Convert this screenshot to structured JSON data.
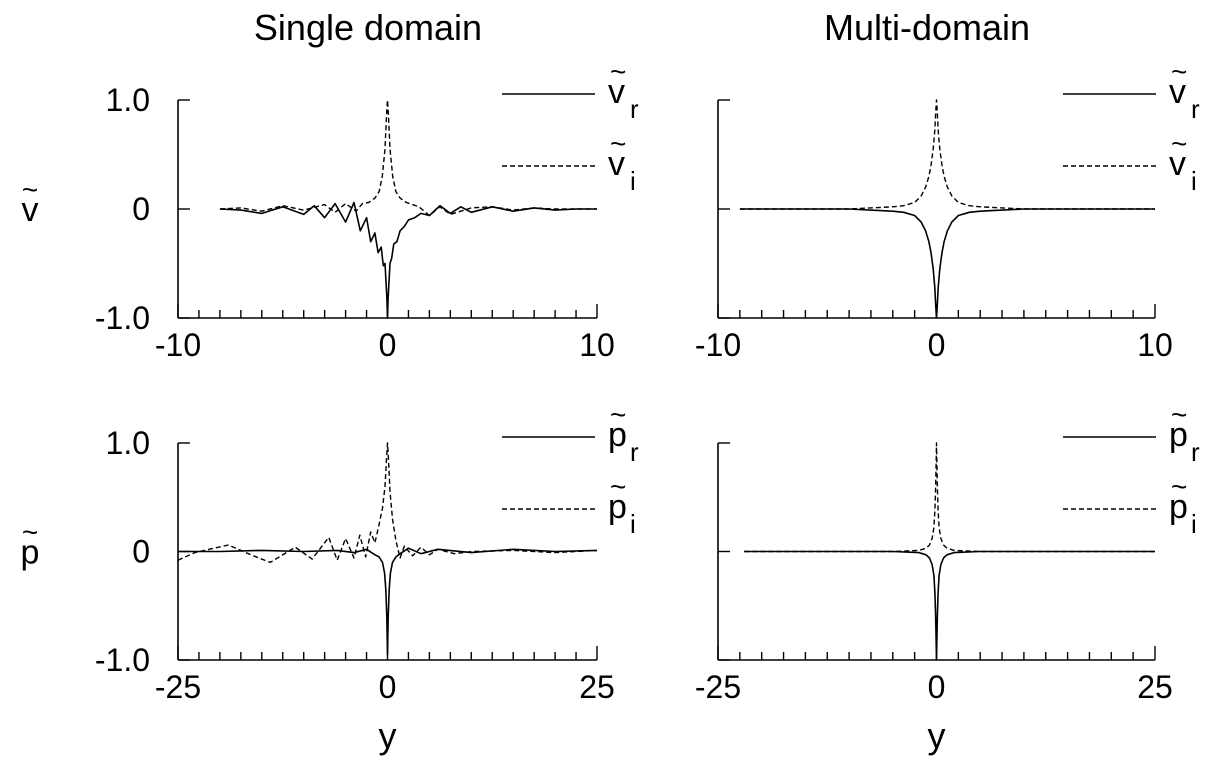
{
  "figure": {
    "column_titles": [
      "Single domain",
      "Multi-domain"
    ]
  },
  "chart_data": [
    {
      "id": "v-single",
      "type": "line",
      "title": "Single domain",
      "xlabel": "",
      "ylabel": "v",
      "xlim": [
        -10,
        10
      ],
      "ylim": [
        -1.0,
        1.0
      ],
      "x_major_ticks": [
        -10,
        0,
        10
      ],
      "x_minor_step": 1,
      "y_ticks": [
        -1.0,
        0,
        1.0
      ],
      "y_tick_labels": [
        "-1.0",
        "0",
        "1.0"
      ],
      "legend": "right",
      "series": [
        {
          "name": "v",
          "sub": "r",
          "style": "solid",
          "x": [
            -8,
            -7,
            -6,
            -5,
            -4,
            -3.5,
            -3,
            -2.5,
            -2,
            -1.6,
            -1.3,
            -1.0,
            -0.8,
            -0.6,
            -0.45,
            -0.3,
            -0.2,
            -0.12,
            -0.06,
            -0.03,
            0,
            0.03,
            0.06,
            0.12,
            0.2,
            0.3,
            0.45,
            0.6,
            0.8,
            1.0,
            1.3,
            1.6,
            2,
            2.5,
            3,
            3.5,
            4,
            5,
            6,
            7,
            8,
            9,
            10
          ],
          "y": [
            0,
            -0.01,
            -0.04,
            0.02,
            -0.05,
            0.03,
            -0.08,
            0.05,
            -0.12,
            0.06,
            -0.2,
            -0.08,
            -0.3,
            -0.22,
            -0.4,
            -0.35,
            -0.52,
            -0.5,
            -0.7,
            -0.82,
            -1.0,
            -0.82,
            -0.7,
            -0.5,
            -0.45,
            -0.32,
            -0.3,
            -0.2,
            -0.16,
            -0.1,
            -0.08,
            -0.04,
            -0.06,
            0.03,
            -0.04,
            0.02,
            -0.03,
            0.02,
            -0.02,
            0.01,
            -0.01,
            0,
            0
          ]
        },
        {
          "name": "v",
          "sub": "i",
          "style": "dashed",
          "x": [
            -8,
            -7,
            -6,
            -5,
            -4,
            -3,
            -2.5,
            -2,
            -1.5,
            -1.2,
            -0.9,
            -0.6,
            -0.4,
            -0.25,
            -0.12,
            -0.05,
            0,
            0.05,
            0.12,
            0.25,
            0.4,
            0.6,
            0.9,
            1.2,
            1.5,
            2,
            2.5,
            3,
            4,
            5,
            6,
            7,
            8,
            9,
            10
          ],
          "y": [
            0,
            0.01,
            -0.02,
            0.03,
            -0.01,
            0.04,
            -0.03,
            0.05,
            -0.02,
            0.05,
            0.06,
            0.1,
            0.16,
            0.3,
            0.55,
            0.85,
            1.0,
            0.85,
            0.55,
            0.3,
            0.16,
            0.1,
            0.06,
            0.04,
            0.02,
            -0.06,
            0.02,
            -0.05,
            0.01,
            0.02,
            -0.01,
            0.01,
            0,
            0,
            0
          ]
        }
      ]
    },
    {
      "id": "v-multi",
      "type": "line",
      "title": "Multi-domain",
      "xlabel": "",
      "ylabel": "",
      "xlim": [
        -10,
        10
      ],
      "ylim": [
        -1.0,
        1.0
      ],
      "x_major_ticks": [
        -10,
        0,
        10
      ],
      "x_minor_step": 1,
      "y_ticks": [
        -1.0,
        0,
        1.0
      ],
      "y_tick_labels": [
        "",
        "",
        ""
      ],
      "legend": "right",
      "series": [
        {
          "name": "v",
          "sub": "r",
          "style": "solid",
          "x": [
            -9,
            -4,
            -2,
            -1.5,
            -1.0,
            -0.7,
            -0.5,
            -0.35,
            -0.25,
            -0.15,
            -0.08,
            -0.03,
            0,
            0.03,
            0.08,
            0.15,
            0.25,
            0.35,
            0.5,
            0.7,
            1.0,
            1.5,
            2,
            4,
            10
          ],
          "y": [
            0,
            0,
            -0.02,
            -0.03,
            -0.06,
            -0.12,
            -0.2,
            -0.3,
            -0.4,
            -0.55,
            -0.72,
            -0.9,
            -1.0,
            -0.9,
            -0.72,
            -0.55,
            -0.4,
            -0.3,
            -0.2,
            -0.12,
            -0.06,
            -0.03,
            -0.02,
            0,
            0
          ]
        },
        {
          "name": "v",
          "sub": "i",
          "style": "dashed",
          "x": [
            -9,
            -4,
            -2,
            -1.5,
            -1.0,
            -0.7,
            -0.5,
            -0.35,
            -0.25,
            -0.15,
            -0.08,
            -0.03,
            0,
            0.03,
            0.08,
            0.15,
            0.25,
            0.35,
            0.5,
            0.7,
            1.0,
            1.5,
            2,
            4,
            10
          ],
          "y": [
            0,
            0,
            0.02,
            0.03,
            0.06,
            0.12,
            0.2,
            0.3,
            0.4,
            0.55,
            0.72,
            0.9,
            1.0,
            0.9,
            0.72,
            0.55,
            0.4,
            0.3,
            0.2,
            0.12,
            0.06,
            0.03,
            0.02,
            0,
            0
          ]
        }
      ]
    },
    {
      "id": "p-single",
      "type": "line",
      "title": "",
      "xlabel": "y",
      "ylabel": "p",
      "xlim": [
        -25,
        25
      ],
      "ylim": [
        -1.0,
        1.0
      ],
      "x_major_ticks": [
        -25,
        0,
        25
      ],
      "x_minor_step": 2.5,
      "y_ticks": [
        -1.0,
        0,
        1.0
      ],
      "y_tick_labels": [
        "-1.0",
        "0",
        "1.0"
      ],
      "legend": "right",
      "series": [
        {
          "name": "p",
          "sub": "r",
          "style": "solid",
          "x": [
            -25,
            -20,
            -15,
            -10,
            -6,
            -4,
            -2.5,
            -1.5,
            -1.0,
            -0.6,
            -0.35,
            -0.2,
            -0.08,
            0,
            0.08,
            0.2,
            0.35,
            0.6,
            1.0,
            1.5,
            2.5,
            4,
            6,
            10,
            15,
            20,
            25
          ],
          "y": [
            0,
            0,
            0.01,
            0,
            0.01,
            -0.01,
            0.02,
            -0.03,
            -0.05,
            -0.1,
            -0.2,
            -0.35,
            -0.6,
            -0.95,
            -0.6,
            -0.35,
            -0.2,
            -0.1,
            -0.05,
            -0.02,
            0.03,
            -0.02,
            0.02,
            -0.01,
            0.02,
            0,
            0.01
          ]
        },
        {
          "name": "p",
          "sub": "i",
          "style": "dashed",
          "x": [
            -26,
            -23,
            -19,
            -16,
            -14,
            -11,
            -9,
            -7,
            -6,
            -5,
            -4,
            -3.3,
            -2.6,
            -2,
            -1.5,
            -1.0,
            -0.6,
            -0.3,
            -0.12,
            0,
            0.12,
            0.3,
            0.6,
            1.0,
            1.5,
            2,
            3,
            4,
            5,
            6,
            8,
            10,
            15,
            20,
            25
          ],
          "y": [
            -0.08,
            -0.01,
            0.06,
            -0.04,
            -0.1,
            0.04,
            -0.07,
            0.13,
            -0.08,
            0.12,
            -0.06,
            0.15,
            -0.05,
            0.18,
            0.08,
            0.25,
            0.4,
            0.6,
            0.85,
            1.0,
            0.85,
            0.55,
            0.3,
            0.1,
            -0.06,
            0.05,
            -0.04,
            0.04,
            -0.03,
            0.02,
            -0.02,
            0,
            0.01,
            -0.01,
            0.01
          ]
        }
      ]
    },
    {
      "id": "p-multi",
      "type": "line",
      "title": "",
      "xlabel": "y",
      "ylabel": "",
      "xlim": [
        -25,
        25
      ],
      "ylim": [
        -1.0,
        1.0
      ],
      "x_major_ticks": [
        -25,
        0,
        25
      ],
      "x_minor_step": 2.5,
      "y_ticks": [
        -1.0,
        0,
        1.0
      ],
      "y_tick_labels": [
        "",
        "",
        ""
      ],
      "legend": "right",
      "series": [
        {
          "name": "p",
          "sub": "r",
          "style": "solid",
          "x": [
            -22,
            -5,
            -2,
            -1.2,
            -0.8,
            -0.5,
            -0.3,
            -0.18,
            -0.1,
            -0.04,
            0,
            0.04,
            0.1,
            0.18,
            0.3,
            0.5,
            0.8,
            1.2,
            2,
            5,
            25
          ],
          "y": [
            0,
            0,
            -0.01,
            -0.03,
            -0.06,
            -0.12,
            -0.22,
            -0.38,
            -0.58,
            -0.85,
            -1.0,
            -0.85,
            -0.58,
            -0.38,
            -0.22,
            -0.12,
            -0.06,
            -0.03,
            -0.01,
            0,
            0
          ]
        },
        {
          "name": "p",
          "sub": "i",
          "style": "dashed",
          "x": [
            -22,
            -5,
            -2,
            -1.2,
            -0.8,
            -0.5,
            -0.3,
            -0.18,
            -0.1,
            -0.04,
            0,
            0.04,
            0.1,
            0.18,
            0.3,
            0.5,
            0.8,
            1.2,
            2,
            5,
            25
          ],
          "y": [
            0,
            0,
            0.01,
            0.03,
            0.06,
            0.12,
            0.22,
            0.38,
            0.58,
            0.85,
            1.0,
            0.85,
            0.58,
            0.38,
            0.22,
            0.12,
            0.06,
            0.03,
            0.01,
            0,
            0
          ]
        }
      ]
    }
  ]
}
